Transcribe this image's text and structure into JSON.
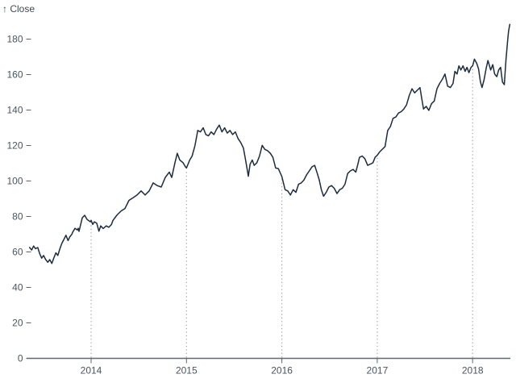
{
  "chart_data": {
    "type": "line",
    "title": "",
    "y_label": "↑ Close",
    "series_name": "Close",
    "legend": "none",
    "grid": "dotted vertical rules at year ticks, from x-axis up to the line",
    "x_ticks": [
      2014,
      2015,
      2016,
      2017,
      2018
    ],
    "y_ticks": [
      0,
      20,
      40,
      60,
      80,
      100,
      120,
      140,
      160,
      180
    ],
    "x_domain": [
      2013.355,
      2018.39
    ],
    "y_domain": [
      0,
      190
    ],
    "colors": {
      "line": "#1c2b3e",
      "axis": "#5f6972",
      "tick": "#5a646e",
      "tick_label": "#4a545f",
      "grid_dots": "#99a0a7",
      "background": "#ffffff"
    },
    "points": [
      [
        2013.355,
        62.5
      ],
      [
        2013.377,
        61.1
      ],
      [
        2013.397,
        63.3
      ],
      [
        2013.417,
        61.8
      ],
      [
        2013.44,
        62.5
      ],
      [
        2013.462,
        58.8
      ],
      [
        2013.482,
        56.5
      ],
      [
        2013.501,
        58.0
      ],
      [
        2013.524,
        55.7
      ],
      [
        2013.546,
        54.2
      ],
      [
        2013.566,
        55.7
      ],
      [
        2013.588,
        53.5
      ],
      [
        2013.609,
        56.5
      ],
      [
        2013.631,
        59.5
      ],
      [
        2013.651,
        58.0
      ],
      [
        2013.673,
        61.8
      ],
      [
        2013.693,
        64.8
      ],
      [
        2013.715,
        67.1
      ],
      [
        2013.736,
        69.4
      ],
      [
        2013.758,
        66.4
      ],
      [
        2013.778,
        68.6
      ],
      [
        2013.8,
        70.1
      ],
      [
        2013.806,
        71.0
      ],
      [
        2013.831,
        73.3
      ],
      [
        2013.856,
        72.4
      ],
      [
        2013.865,
        73.3
      ],
      [
        2013.873,
        71.6
      ],
      [
        2013.907,
        79.2
      ],
      [
        2013.932,
        80.7
      ],
      [
        2013.958,
        78.3
      ],
      [
        2013.992,
        77.0
      ],
      [
        2014.0,
        77.8
      ],
      [
        2014.017,
        75.5
      ],
      [
        2014.034,
        77.0
      ],
      [
        2014.059,
        76.2
      ],
      [
        2014.082,
        71.7
      ],
      [
        2014.101,
        74.7
      ],
      [
        2014.127,
        73.2
      ],
      [
        2014.158,
        74.7
      ],
      [
        2014.186,
        73.9
      ],
      [
        2014.214,
        75.5
      ],
      [
        2014.228,
        77.7
      ],
      [
        2014.27,
        80.7
      ],
      [
        2014.313,
        83.0
      ],
      [
        2014.355,
        84.5
      ],
      [
        2014.397,
        89.1
      ],
      [
        2014.44,
        90.6
      ],
      [
        2014.482,
        92.1
      ],
      [
        2014.524,
        94.4
      ],
      [
        2014.566,
        92.1
      ],
      [
        2014.609,
        94.4
      ],
      [
        2014.651,
        98.9
      ],
      [
        2014.693,
        97.4
      ],
      [
        2014.735,
        96.6
      ],
      [
        2014.778,
        102.0
      ],
      [
        2014.82,
        105.0
      ],
      [
        2014.845,
        102.0
      ],
      [
        2014.879,
        110.3
      ],
      [
        2014.904,
        115.6
      ],
      [
        2014.93,
        111.8
      ],
      [
        2014.964,
        110.3
      ],
      [
        2014.989,
        108.0
      ],
      [
        2015.0,
        107.3
      ],
      [
        2015.034,
        111.8
      ],
      [
        2015.059,
        114.1
      ],
      [
        2015.09,
        120.1
      ],
      [
        2015.118,
        128.5
      ],
      [
        2015.146,
        127.7
      ],
      [
        2015.175,
        130.0
      ],
      [
        2015.203,
        126.2
      ],
      [
        2015.231,
        125.5
      ],
      [
        2015.259,
        127.7
      ],
      [
        2015.287,
        126.2
      ],
      [
        2015.315,
        129.2
      ],
      [
        2015.344,
        131.5
      ],
      [
        2015.372,
        127.7
      ],
      [
        2015.4,
        130.0
      ],
      [
        2015.428,
        127.0
      ],
      [
        2015.456,
        128.5
      ],
      [
        2015.484,
        126.2
      ],
      [
        2015.512,
        127.7
      ],
      [
        2015.541,
        123.9
      ],
      [
        2015.569,
        121.7
      ],
      [
        2015.597,
        118.6
      ],
      [
        2015.617,
        112.6
      ],
      [
        2015.634,
        107.3
      ],
      [
        2015.648,
        102.7
      ],
      [
        2015.667,
        109.5
      ],
      [
        2015.69,
        111.8
      ],
      [
        2015.71,
        108.8
      ],
      [
        2015.738,
        110.3
      ],
      [
        2015.766,
        114.1
      ],
      [
        2015.794,
        120.1
      ],
      [
        2015.822,
        117.8
      ],
      [
        2015.85,
        117.1
      ],
      [
        2015.879,
        115.6
      ],
      [
        2015.906,
        113.3
      ],
      [
        2015.935,
        107.3
      ],
      [
        2015.963,
        107.0
      ],
      [
        2016.0,
        102.5
      ],
      [
        2016.034,
        95.1
      ],
      [
        2016.062,
        94.4
      ],
      [
        2016.09,
        92.1
      ],
      [
        2016.118,
        95.1
      ],
      [
        2016.147,
        93.6
      ],
      [
        2016.175,
        98.2
      ],
      [
        2016.203,
        98.9
      ],
      [
        2016.231,
        100.5
      ],
      [
        2016.259,
        103.4
      ],
      [
        2016.287,
        105.7
      ],
      [
        2016.316,
        108.0
      ],
      [
        2016.344,
        108.8
      ],
      [
        2016.372,
        104.2
      ],
      [
        2016.392,
        100.5
      ],
      [
        2016.414,
        95.1
      ],
      [
        2016.437,
        91.4
      ],
      [
        2016.465,
        93.6
      ],
      [
        2016.493,
        96.6
      ],
      [
        2016.521,
        97.4
      ],
      [
        2016.549,
        95.9
      ],
      [
        2016.578,
        92.9
      ],
      [
        2016.606,
        95.1
      ],
      [
        2016.634,
        95.9
      ],
      [
        2016.662,
        98.2
      ],
      [
        2016.69,
        104.2
      ],
      [
        2016.718,
        105.7
      ],
      [
        2016.747,
        106.5
      ],
      [
        2016.775,
        105.0
      ],
      [
        2016.794,
        108.8
      ],
      [
        2016.814,
        113.3
      ],
      [
        2016.842,
        114.1
      ],
      [
        2016.87,
        112.6
      ],
      [
        2016.899,
        108.8
      ],
      [
        2016.927,
        109.5
      ],
      [
        2016.955,
        110.3
      ],
      [
        2016.977,
        113.3
      ],
      [
        2017.0,
        114.5
      ],
      [
        2017.025,
        116.4
      ],
      [
        2017.053,
        117.9
      ],
      [
        2017.082,
        119.4
      ],
      [
        2017.11,
        128.5
      ],
      [
        2017.138,
        130.7
      ],
      [
        2017.166,
        135.3
      ],
      [
        2017.195,
        136.1
      ],
      [
        2017.223,
        138.3
      ],
      [
        2017.251,
        139.1
      ],
      [
        2017.279,
        140.6
      ],
      [
        2017.307,
        142.9
      ],
      [
        2017.336,
        148.2
      ],
      [
        2017.364,
        152.0
      ],
      [
        2017.392,
        149.7
      ],
      [
        2017.42,
        151.2
      ],
      [
        2017.448,
        152.7
      ],
      [
        2017.468,
        145.9
      ],
      [
        2017.485,
        140.6
      ],
      [
        2017.513,
        142.1
      ],
      [
        2017.541,
        139.8
      ],
      [
        2017.569,
        143.6
      ],
      [
        2017.598,
        145.1
      ],
      [
        2017.626,
        152.0
      ],
      [
        2017.654,
        155.0
      ],
      [
        2017.682,
        157.3
      ],
      [
        2017.71,
        160.3
      ],
      [
        2017.738,
        153.5
      ],
      [
        2017.767,
        152.7
      ],
      [
        2017.795,
        155.0
      ],
      [
        2017.814,
        161.8
      ],
      [
        2017.837,
        160.3
      ],
      [
        2017.856,
        164.9
      ],
      [
        2017.877,
        162.6
      ],
      [
        2017.899,
        164.9
      ],
      [
        2017.921,
        161.8
      ],
      [
        2017.941,
        164.1
      ],
      [
        2017.961,
        161.1
      ],
      [
        2017.983,
        164.1
      ],
      [
        2018.0,
        164.9
      ],
      [
        2018.019,
        168.7
      ],
      [
        2018.042,
        166.4
      ],
      [
        2018.062,
        163.3
      ],
      [
        2018.082,
        155.8
      ],
      [
        2018.099,
        152.7
      ],
      [
        2018.121,
        157.3
      ],
      [
        2018.141,
        163.3
      ],
      [
        2018.161,
        167.9
      ],
      [
        2018.189,
        162.6
      ],
      [
        2018.211,
        165.6
      ],
      [
        2018.231,
        160.3
      ],
      [
        2018.254,
        158.8
      ],
      [
        2018.273,
        162.6
      ],
      [
        2018.293,
        164.1
      ],
      [
        2018.313,
        155.8
      ],
      [
        2018.332,
        154.3
      ],
      [
        2018.349,
        167.9
      ],
      [
        2018.366,
        178.5
      ],
      [
        2018.377,
        184.5
      ],
      [
        2018.39,
        188.3
      ]
    ]
  }
}
